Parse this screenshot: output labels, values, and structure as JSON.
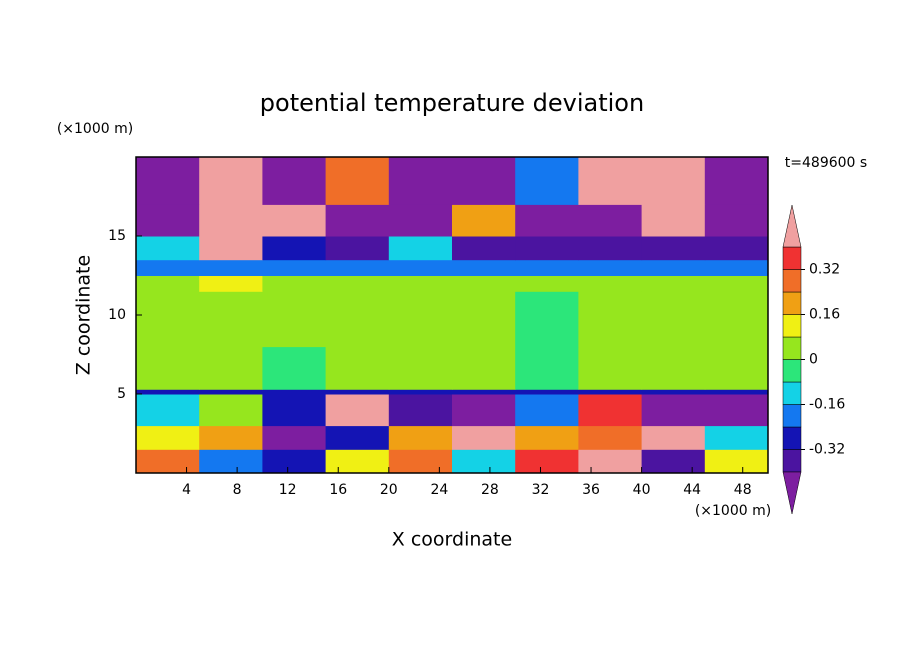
{
  "chart_data": {
    "type": "contour",
    "title": "potential temperature deviation",
    "x_label": "X coordinate",
    "y_label": "Z coordinate",
    "x_unit": "(×1000 m)",
    "y_unit": "(×1000 m)",
    "time_label": "t=489600 s",
    "xlim": [
      0,
      50
    ],
    "ylim": [
      0,
      20
    ],
    "xticks": [
      4,
      8,
      12,
      16,
      20,
      24,
      28,
      32,
      36,
      40,
      44,
      48
    ],
    "yticks": [
      5,
      10,
      15
    ],
    "field": {
      "x_edges": [
        0,
        5,
        10,
        15,
        20,
        25,
        30,
        35,
        40,
        45,
        50
      ],
      "z_edges": [
        0,
        1.5,
        3,
        5,
        5.3,
        8,
        11.5,
        12.5,
        13.5,
        15,
        17,
        20
      ],
      "values": [
        [
          0.3,
          -0.2,
          -0.3,
          0.1,
          0.3,
          -0.1,
          0.35,
          0.45,
          -0.4,
          0.1
        ],
        [
          0.1,
          0.2,
          -0.45,
          -0.3,
          0.2,
          0.45,
          0.2,
          0.3,
          0.45,
          -0.1
        ],
        [
          -0.1,
          0.05,
          -0.3,
          0.45,
          -0.35,
          -0.45,
          -0.2,
          0.35,
          -0.45,
          -0.45
        ],
        [
          -0.28,
          -0.28,
          -0.28,
          -0.28,
          -0.28,
          -0.28,
          -0.28,
          -0.28,
          -0.28,
          -0.28
        ],
        [
          0.05,
          0.02,
          -0.03,
          0.05,
          0.06,
          0.03,
          -0.02,
          0.04,
          0.02,
          0.05
        ],
        [
          0.03,
          0.06,
          0.05,
          0.02,
          0.04,
          0.05,
          -0.02,
          0.03,
          0.04,
          0.03
        ],
        [
          0.05,
          0.1,
          0.05,
          0.05,
          0.05,
          0.05,
          0.05,
          0.05,
          0.05,
          0.05
        ],
        [
          -0.2,
          -0.2,
          -0.2,
          -0.2,
          -0.2,
          -0.2,
          -0.2,
          -0.2,
          -0.2,
          -0.2
        ],
        [
          -0.1,
          0.45,
          -0.3,
          -0.35,
          -0.1,
          -0.35,
          -0.4,
          -0.4,
          -0.4,
          -0.4
        ],
        [
          -0.45,
          0.45,
          0.45,
          -0.45,
          -0.45,
          0.2,
          -0.45,
          -0.45,
          0.45,
          -0.45
        ],
        [
          -0.45,
          0.45,
          -0.45,
          0.3,
          -0.45,
          -0.45,
          -0.2,
          0.45,
          0.45,
          -0.45
        ]
      ]
    },
    "colorbar": {
      "levels": [
        -0.4,
        -0.32,
        -0.24,
        -0.16,
        -0.08,
        0,
        0.08,
        0.16,
        0.24,
        0.32,
        0.4
      ],
      "colors": [
        "#7d1ea0",
        "#4b14a0",
        "#1414b4",
        "#1478f0",
        "#14d2e6",
        "#2ce67a",
        "#96e61e",
        "#f0f014",
        "#f0a014",
        "#f06e28",
        "#f03232",
        "#f0a0a0"
      ],
      "ticks": [
        -0.32,
        -0.16,
        0,
        0.16,
        0.32
      ]
    }
  }
}
